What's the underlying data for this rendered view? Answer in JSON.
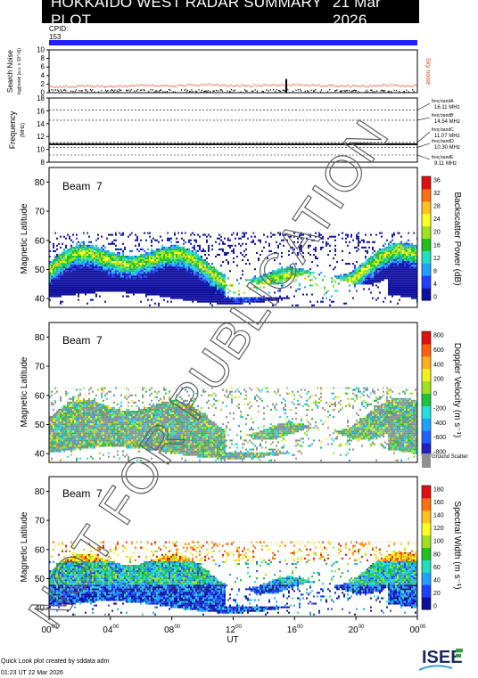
{
  "header": {
    "title": "HOKKAIDO WEST RADAR SUMMARY PLOT",
    "date": "21 Mar 2026"
  },
  "cpid": {
    "label": "CPID:",
    "value": "153"
  },
  "colors": {
    "title_bg": "#000000",
    "cpid_bar": "#2020ff",
    "noise_trace": "#e05020",
    "freq_trace": "#000000"
  },
  "chart_data": [
    {
      "type": "scatter",
      "panel": "search-noise",
      "ylabel": "Search Noise",
      "ylabel_sub": "log(noise [a.u. x 10^-6])",
      "y_ticks": [
        0,
        2,
        4,
        6,
        8,
        10
      ],
      "ylim": [
        0,
        10
      ],
      "series_label": "Sky noise",
      "series": [
        {
          "name": "Sky noise",
          "x": [
            0,
            2,
            4,
            6,
            8,
            10,
            12,
            14,
            16,
            18,
            20,
            22,
            24
          ],
          "y": [
            1.4,
            1.6,
            1.5,
            1.8,
            1.6,
            2.0,
            1.7,
            1.8,
            1.9,
            1.7,
            1.6,
            1.8,
            1.7
          ]
        }
      ],
      "spike": {
        "x": 15.4,
        "y": 3.2
      }
    },
    {
      "type": "line",
      "panel": "frequency",
      "ylabel": "Frequency",
      "ylabel_unit": "(MHz)",
      "y_ticks": [
        8,
        10,
        12,
        14,
        16,
        18
      ],
      "ylim": [
        8,
        18
      ],
      "freq_bands": [
        {
          "name": "freq bandA",
          "value": "16.11 MHz",
          "mhz": 16.11
        },
        {
          "name": "freq bandB",
          "value": "14.54 MHz",
          "mhz": 14.54
        },
        {
          "name": "freq bandC",
          "value": "11.07 MHz",
          "mhz": 11.07
        },
        {
          "name": "freq bandD",
          "value": "10.30 MHz",
          "mhz": 10.3
        },
        {
          "name": "freq bandE",
          "value": "9.11 MHz",
          "mhz": 9.11
        }
      ],
      "operating_mhz": 10.8
    },
    {
      "type": "heatmap",
      "panel": "backscatter-power",
      "beam_label": "Beam  7",
      "ylabel": "Magnetic Latitude",
      "y_ticks": [
        40,
        50,
        60,
        70,
        80
      ],
      "ylim": [
        37,
        85
      ],
      "colorbar_label": "Backscatter Power (dB)",
      "colorbar_ticks": [
        "0",
        "4",
        "8",
        "12",
        "16",
        "20",
        "24",
        "28",
        "32",
        "36"
      ],
      "colorbar_colors": [
        "#1010a0",
        "#2040ff",
        "#20a0ff",
        "#20e0c0",
        "#20c020",
        "#a0e020",
        "#ffff20",
        "#ffc020",
        "#ff7010",
        "#e01010"
      ]
    },
    {
      "type": "heatmap",
      "panel": "doppler-velocity",
      "beam_label": "Beam  7",
      "ylabel": "Magnetic Latitude",
      "y_ticks": [
        40,
        50,
        60,
        70,
        80
      ],
      "ylim": [
        37,
        85
      ],
      "colorbar_label": "Doppler Velocity (m s⁻¹)",
      "colorbar_ticks": [
        "800",
        "600",
        "400",
        "200",
        "0",
        "-200",
        "-400",
        "-600",
        "-800"
      ],
      "colorbar_colors": [
        "#2020c0",
        "#2060ff",
        "#20a0ff",
        "#20e0e0",
        "#20c040",
        "#a0e020",
        "#f0f020",
        "#ffb020",
        "#ff6010",
        "#e01010"
      ],
      "ground_scatter_label": "Ground Scatter",
      "ground_scatter_color": "#909090"
    },
    {
      "type": "heatmap",
      "panel": "spectral-width",
      "beam_label": "Beam  7",
      "ylabel": "Magnetic Latitude",
      "y_ticks": [
        40,
        50,
        60,
        70,
        80
      ],
      "ylim": [
        37,
        85
      ],
      "colorbar_label": "Spectral Width (m s⁻¹)",
      "colorbar_ticks": [
        "180",
        "160",
        "140",
        "120",
        "100",
        "80",
        "60",
        "40",
        "20",
        "0"
      ],
      "colorbar_colors": [
        "#1010a0",
        "#2040ff",
        "#20a0ff",
        "#20e0c0",
        "#20c020",
        "#a0e020",
        "#ffff20",
        "#ffc020",
        "#ff7010",
        "#e01010"
      ],
      "x_ticks": [
        "00",
        "04",
        "08",
        "12",
        "16",
        "20",
        "00"
      ],
      "x_tick_sup": "00",
      "xlabel": "UT",
      "xlim": [
        0,
        24
      ]
    }
  ],
  "watermark": "NOT FOR PUBLICATION",
  "footer": {
    "line1": "Quick Look plot created by sddata adm",
    "line2": "01:23 UT 22 Mar 2026"
  },
  "logo": {
    "text": "ISEE"
  }
}
